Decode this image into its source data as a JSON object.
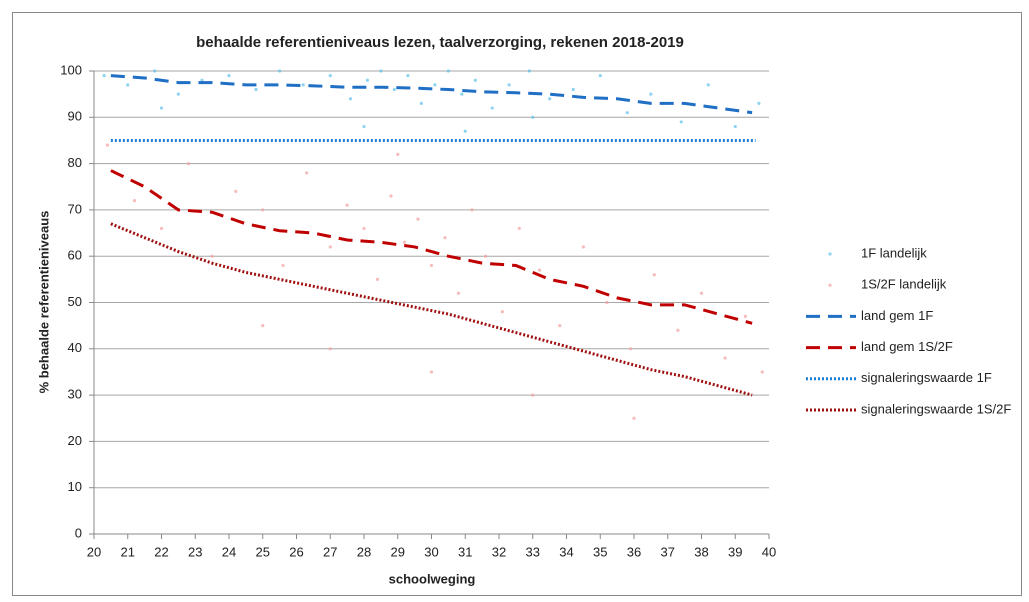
{
  "chart_data": {
    "type": "scatter",
    "title": "behaalde referentieniveaus  lezen, taalverzorging, rekenen 2018-2019",
    "x_label": "schoolweging",
    "y_label": "% behaalde referentieniveaus",
    "xlim": [
      20,
      40
    ],
    "xticks": [
      20,
      21,
      22,
      23,
      24,
      25,
      26,
      27,
      28,
      29,
      30,
      31,
      32,
      33,
      34,
      35,
      36,
      37,
      38,
      39,
      40
    ],
    "ylim": [
      0,
      100
    ],
    "yticks": [
      0,
      10,
      20,
      30,
      40,
      50,
      60,
      70,
      80,
      90,
      100
    ],
    "grid": true,
    "legend": "right",
    "series": [
      {
        "name": "1F landelijk",
        "type": "scatter",
        "color": "#5ec0ec",
        "x": [
          20.3,
          21,
          21.8,
          22.5,
          23.2,
          24,
          24.8,
          25.5,
          26.2,
          27,
          27.6,
          28.1,
          28.5,
          28.9,
          29.3,
          29.7,
          30.1,
          30.5,
          30.9,
          31.3,
          31.8,
          32.3,
          32.9,
          33.5,
          34.2,
          35,
          35.8,
          36.5,
          37.4,
          38.2,
          39,
          39.7,
          28,
          31,
          33,
          22
        ],
        "values": [
          99,
          97,
          100,
          95,
          98,
          99,
          96,
          100,
          97,
          99,
          94,
          98,
          100,
          96,
          99,
          93,
          97,
          100,
          95,
          98,
          92,
          97,
          100,
          94,
          96,
          99,
          91,
          95,
          89,
          97,
          88,
          93,
          88,
          87,
          90,
          92
        ]
      },
      {
        "name": "1S/2F landelijk",
        "type": "scatter",
        "color": "#f2a0a0",
        "x": [
          20.4,
          21.2,
          22,
          22.8,
          23.5,
          24.2,
          25,
          25.6,
          26.3,
          27,
          27.5,
          28,
          28.4,
          28.8,
          29.2,
          29.6,
          30,
          30.4,
          30.8,
          31.2,
          31.6,
          32.1,
          32.6,
          33.2,
          33.8,
          34.5,
          35.2,
          35.9,
          36.6,
          37.3,
          38,
          38.7,
          39.3,
          39.8,
          27,
          30,
          25,
          33,
          29,
          36
        ],
        "values": [
          84,
          72,
          66,
          80,
          60,
          74,
          70,
          58,
          78,
          62,
          71,
          66,
          55,
          73,
          63,
          68,
          58,
          64,
          52,
          70,
          60,
          48,
          66,
          57,
          45,
          62,
          50,
          40,
          56,
          44,
          52,
          38,
          47,
          35,
          40,
          35,
          45,
          30,
          82,
          25
        ]
      },
      {
        "name": "land gem 1F",
        "type": "line",
        "style": "dashed",
        "color": "#1f6fc5",
        "x": [
          20.5,
          21.5,
          22.5,
          23.5,
          24.5,
          25.5,
          26.5,
          27.5,
          28.5,
          29.5,
          30.5,
          31.5,
          32.5,
          33.5,
          34.5,
          35.5,
          36.5,
          37.5,
          38.5,
          39.5
        ],
        "values": [
          99,
          98.5,
          97.5,
          97.5,
          97,
          97,
          96.8,
          96.5,
          96.5,
          96.3,
          96,
          95.5,
          95.3,
          95,
          94.3,
          94,
          93,
          93,
          92,
          91
        ]
      },
      {
        "name": "land gem 1S/2F",
        "type": "line",
        "style": "dashed",
        "color": "#c00000",
        "x": [
          20.5,
          21.5,
          22.5,
          23.5,
          24.5,
          25.5,
          26.5,
          27.5,
          28.5,
          29.5,
          30.5,
          31.5,
          32.5,
          33.5,
          34.5,
          35.5,
          36.5,
          37.5,
          38.5,
          39.5
        ],
        "values": [
          78.5,
          75,
          70,
          69.5,
          67,
          65.5,
          65,
          63.5,
          63,
          62,
          60,
          58.5,
          58,
          55,
          53.5,
          51,
          49.5,
          49.5,
          47.5,
          45.5
        ]
      },
      {
        "name": "signaleringswaarde 1F",
        "type": "line",
        "style": "dotted",
        "color": "#1f7fd0",
        "x": [
          20.5,
          39.6
        ],
        "values": [
          85,
          85
        ]
      },
      {
        "name": "signaleringswaarde 1S/2F",
        "type": "line",
        "style": "dotted",
        "color": "#a01010",
        "x": [
          20.5,
          21.5,
          22.5,
          23.5,
          24.5,
          25.5,
          26.5,
          27.5,
          28.5,
          29.5,
          30.5,
          31.5,
          32.5,
          33.5,
          34.5,
          35.5,
          36.5,
          37.5,
          38.5,
          39.5
        ],
        "values": [
          67,
          64,
          61,
          58.5,
          56.5,
          55,
          53.5,
          52,
          50.5,
          49,
          47.5,
          45.5,
          43.5,
          41.5,
          39.5,
          37.5,
          35.5,
          34,
          32,
          30
        ]
      }
    ]
  }
}
